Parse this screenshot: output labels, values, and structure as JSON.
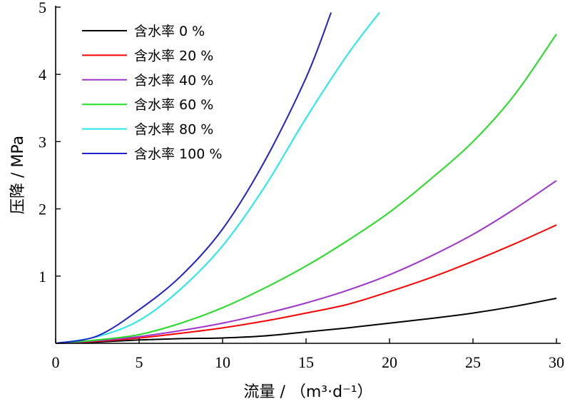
{
  "chart_data": {
    "type": "line",
    "title": "",
    "xlabel": "流量 / （m³·d⁻¹）",
    "ylabel": "压降 / MPa",
    "xlim": [
      0,
      30
    ],
    "ylim": [
      0,
      5
    ],
    "xticks": [
      "0",
      "5",
      "10",
      "15",
      "20",
      "25",
      "30"
    ],
    "yticks": [
      "1",
      "2",
      "3",
      "4",
      "5"
    ],
    "grid": false,
    "legend_position": "top-left",
    "series": [
      {
        "name": "含水率 0 %",
        "color": "#000000",
        "x": [
          0,
          2.5,
          5,
          7.5,
          10,
          12.5,
          15,
          17.5,
          20,
          22.5,
          25,
          27.5,
          30
        ],
        "y": [
          0,
          0.02,
          0.05,
          0.07,
          0.08,
          0.11,
          0.17,
          0.23,
          0.3,
          0.37,
          0.45,
          0.55,
          0.67
        ]
      },
      {
        "name": "含水率 20 %",
        "color": "#ff0000",
        "x": [
          0,
          2.5,
          5,
          7.5,
          10,
          12.5,
          15,
          17.5,
          20,
          22.5,
          25,
          27.5,
          30
        ],
        "y": [
          0,
          0.03,
          0.08,
          0.15,
          0.23,
          0.33,
          0.45,
          0.58,
          0.77,
          0.98,
          1.22,
          1.48,
          1.76
        ]
      },
      {
        "name": "含水率 40 %",
        "color": "#a033cc",
        "x": [
          0,
          2.5,
          5,
          7.5,
          10,
          12.5,
          15,
          17.5,
          20,
          22.5,
          25,
          27.5,
          30
        ],
        "y": [
          0,
          0.04,
          0.1,
          0.19,
          0.3,
          0.44,
          0.6,
          0.79,
          1.02,
          1.3,
          1.62,
          2.0,
          2.42
        ]
      },
      {
        "name": "含水率 60 %",
        "color": "#22dd22",
        "x": [
          0,
          2.5,
          5,
          7.5,
          10,
          12.5,
          15,
          17.5,
          20,
          22.5,
          25,
          27.5,
          30
        ],
        "y": [
          0,
          0.05,
          0.13,
          0.3,
          0.53,
          0.82,
          1.15,
          1.53,
          1.95,
          2.45,
          3.0,
          3.7,
          4.6
        ]
      },
      {
        "name": "含水率 80 %",
        "color": "#22e8e8",
        "x": [
          0,
          2.5,
          5,
          7.5,
          10,
          12.5,
          15,
          17.5,
          19.4
        ],
        "y": [
          0,
          0.1,
          0.34,
          0.81,
          1.45,
          2.32,
          3.35,
          4.3,
          4.92
        ]
      },
      {
        "name": "含水率 100 %",
        "color": "#2222cc",
        "x": [
          0,
          2.5,
          5,
          7.5,
          10,
          12.5,
          15,
          16.5
        ],
        "y": [
          0,
          0.11,
          0.5,
          1.0,
          1.7,
          2.7,
          3.95,
          4.92
        ]
      }
    ]
  }
}
